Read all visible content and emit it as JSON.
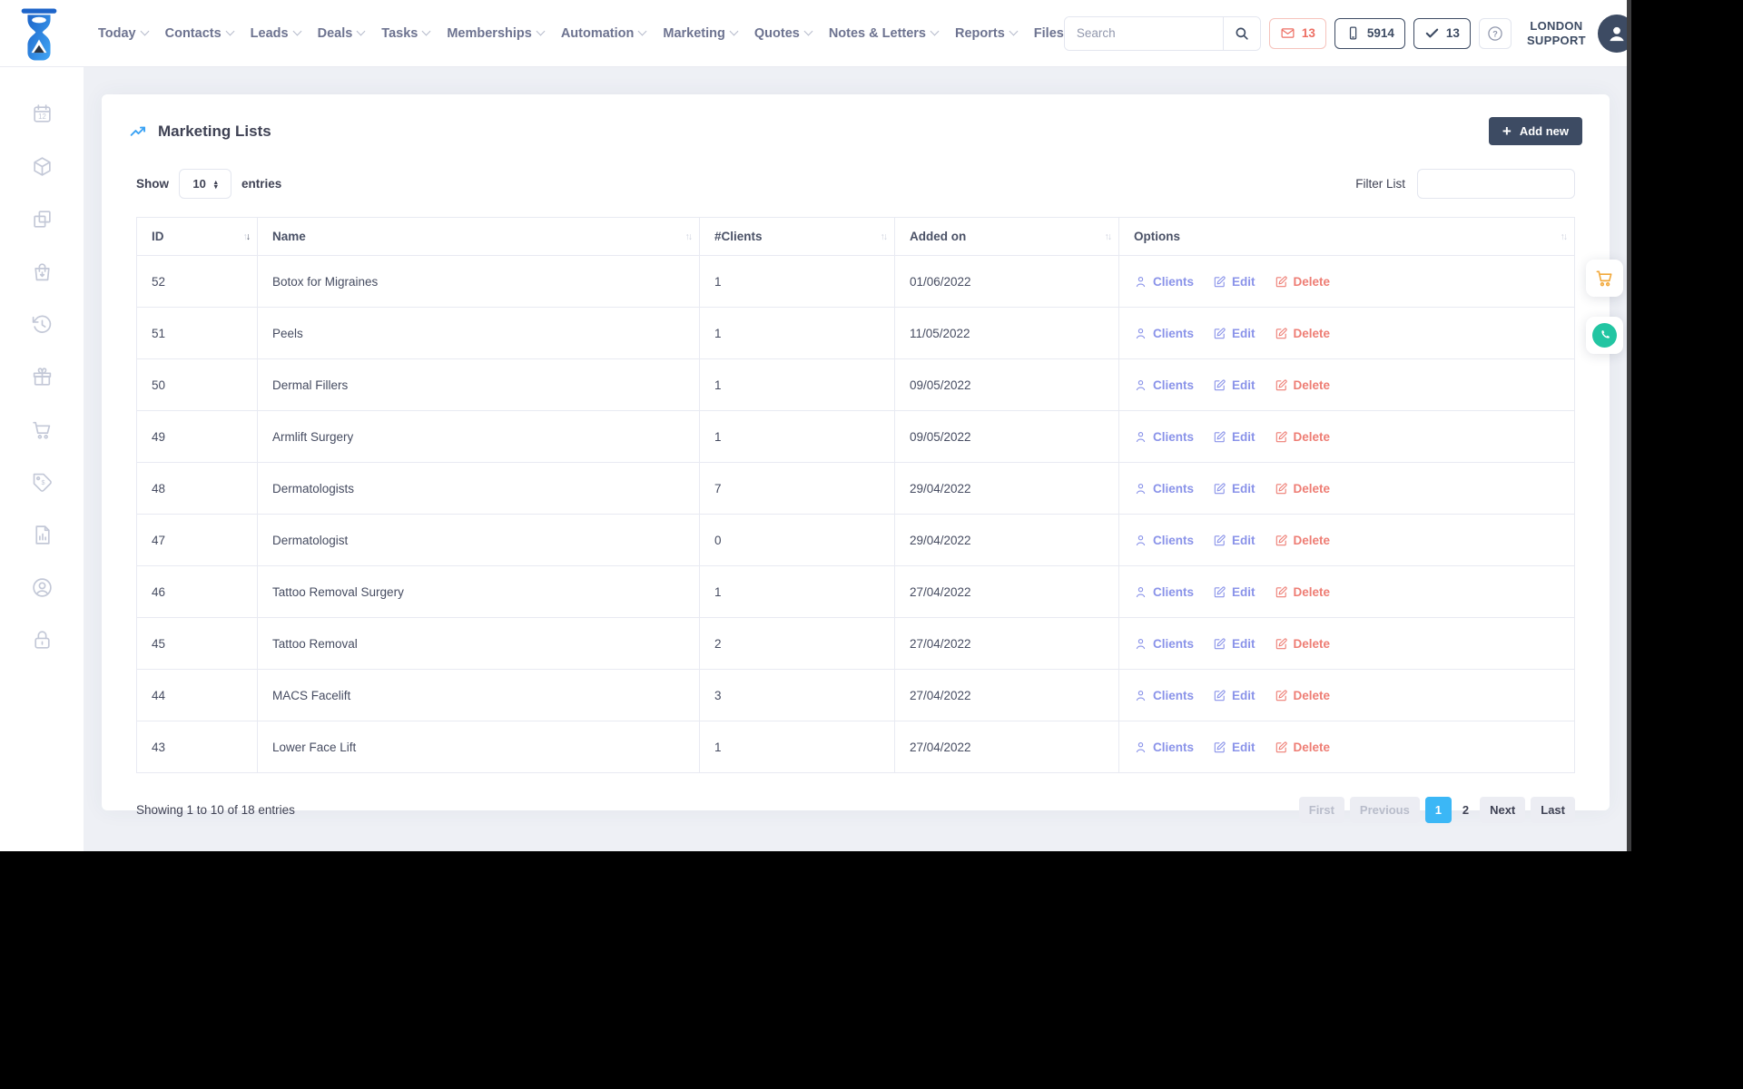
{
  "navbar": {
    "menu": [
      {
        "label": "Today",
        "chevron": true
      },
      {
        "label": "Contacts",
        "chevron": true
      },
      {
        "label": "Leads",
        "chevron": true
      },
      {
        "label": "Deals",
        "chevron": true
      },
      {
        "label": "Tasks",
        "chevron": true
      },
      {
        "label": "Memberships",
        "chevron": true
      },
      {
        "label": "Automation",
        "chevron": true
      },
      {
        "label": "Marketing",
        "chevron": true
      },
      {
        "label": "Quotes",
        "chevron": true
      },
      {
        "label": "Notes & Letters",
        "chevron": true
      },
      {
        "label": "Reports",
        "chevron": true
      },
      {
        "label": "Files",
        "chevron": false
      }
    ],
    "search_placeholder": "Search",
    "badges": {
      "messages": "13",
      "phone": "5914",
      "tasks": "13",
      "help": "?"
    },
    "user": {
      "line1": "LONDON",
      "line2": "SUPPORT"
    }
  },
  "sidebar": {
    "items": [
      {
        "name": "calendar"
      },
      {
        "name": "cube"
      },
      {
        "name": "copy"
      },
      {
        "name": "bag"
      },
      {
        "name": "history"
      },
      {
        "name": "gift"
      },
      {
        "name": "cart"
      },
      {
        "name": "price-tag"
      },
      {
        "name": "report"
      },
      {
        "name": "user-circle"
      },
      {
        "name": "lock"
      }
    ]
  },
  "page": {
    "title": "Marketing Lists",
    "add_new_label": "Add new",
    "show_label": "Show",
    "entries_label": "entries",
    "page_size": "10",
    "filter_label": "Filter List",
    "filter_value": "",
    "table": {
      "columns": [
        {
          "label": "ID",
          "sort": "desc"
        },
        {
          "label": "Name",
          "sort": "none"
        },
        {
          "label": "#Clients",
          "sort": "none"
        },
        {
          "label": "Added on",
          "sort": "none"
        },
        {
          "label": "Options",
          "sort": "none"
        }
      ],
      "options_labels": {
        "clients": "Clients",
        "edit": "Edit",
        "delete": "Delete"
      },
      "rows": [
        {
          "id": "52",
          "name": "Botox for Migraines",
          "clients": "1",
          "added": "01/06/2022"
        },
        {
          "id": "51",
          "name": "Peels",
          "clients": "1",
          "added": "11/05/2022"
        },
        {
          "id": "50",
          "name": "Dermal Fillers",
          "clients": "1",
          "added": "09/05/2022"
        },
        {
          "id": "49",
          "name": "Armlift Surgery",
          "clients": "1",
          "added": "09/05/2022"
        },
        {
          "id": "48",
          "name": "Dermatologists",
          "clients": "7",
          "added": "29/04/2022"
        },
        {
          "id": "47",
          "name": "Dermatologist",
          "clients": "0",
          "added": "29/04/2022"
        },
        {
          "id": "46",
          "name": "Tattoo Removal Surgery",
          "clients": "1",
          "added": "27/04/2022"
        },
        {
          "id": "45",
          "name": "Tattoo Removal",
          "clients": "2",
          "added": "27/04/2022"
        },
        {
          "id": "44",
          "name": "MACS Facelift",
          "clients": "3",
          "added": "27/04/2022"
        },
        {
          "id": "43",
          "name": "Lower Face Lift",
          "clients": "1",
          "added": "27/04/2022"
        }
      ]
    },
    "footer": {
      "summary": "Showing 1 to 10 of 18 entries",
      "pagination": [
        {
          "label": "First",
          "disabled": true
        },
        {
          "label": "Previous",
          "disabled": true
        },
        {
          "label": "1",
          "active": true,
          "plain": false
        },
        {
          "label": "2",
          "plain": true
        },
        {
          "label": "Next"
        },
        {
          "label": "Last"
        }
      ]
    }
  },
  "colors": {
    "accent_blue": "#3bb7f6",
    "navy": "#3d4b63",
    "mail_red": "#ed6e63",
    "link_indigo": "#8a93e9",
    "link_red": "#ee7d74",
    "cart_orange": "#f2a93b",
    "whatsapp_teal": "#22c5a2",
    "logo_blue_dark": "#1d64c9",
    "logo_blue_light": "#41a6f5",
    "page_bg": "#eef0f5"
  }
}
